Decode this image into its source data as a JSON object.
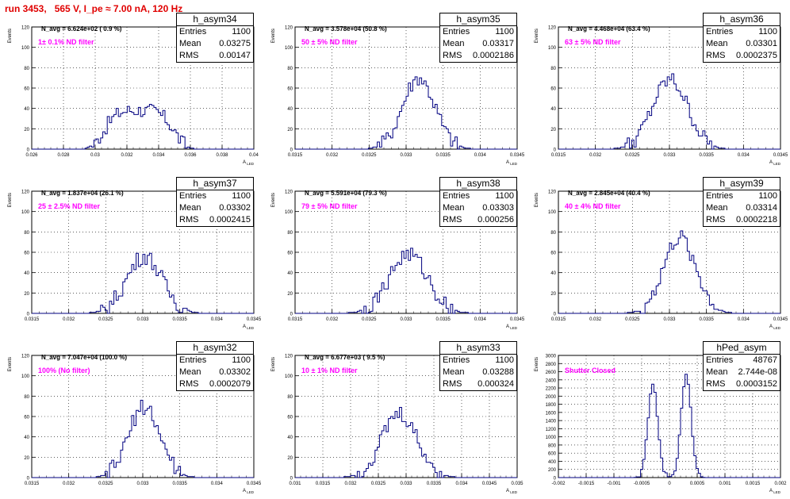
{
  "header": {
    "run_title": "run 3453,   565 V, I_pe ≈ 7.00 nA, 120 Hz"
  },
  "chart_data": [
    {
      "type": "bar",
      "name": "h_asym34",
      "n_avg": "N_avg = 6.624e+02 ( 0.9 %)",
      "filter": "1± 0.1% ND filter",
      "stats": {
        "entries": "1100",
        "mean": "0.03275",
        "rms": "0.00147"
      },
      "ylabel": "Events",
      "xlabel": "A_LED",
      "xlim": [
        0.026,
        0.04
      ],
      "ylim": [
        0,
        120
      ],
      "yticks": [
        "0",
        "20",
        "40",
        "60",
        "80",
        "100",
        "120"
      ],
      "xticks": [
        "0.026",
        "0.028",
        "0.03",
        "0.032",
        "0.034",
        "0.036",
        "0.038",
        "0.04"
      ],
      "mean": 0.03275,
      "sigma": 0.0016,
      "peak": 38,
      "shape": "flat",
      "line_color": "#000080"
    },
    {
      "type": "bar",
      "name": "h_asym35",
      "n_avg": "N_avg = 3.578e+04 (50.8 %)",
      "filter": "50 ± 5% ND filter",
      "stats": {
        "entries": "1100",
        "mean": "0.03317",
        "rms": "0.0002186"
      },
      "ylabel": "Events",
      "xlabel": "A_LED",
      "xlim": [
        0.0315,
        0.0345
      ],
      "ylim": [
        0,
        120
      ],
      "yticks": [
        "0",
        "20",
        "40",
        "60",
        "80",
        "100",
        "120"
      ],
      "xticks": [
        "0.0315",
        "0.032",
        "0.0325",
        "0.033",
        "0.0335",
        "0.034",
        "0.0345"
      ],
      "mean": 0.03317,
      "sigma": 0.00022,
      "peak": 70,
      "shape": "gauss",
      "line_color": "#000080"
    },
    {
      "type": "bar",
      "name": "h_asym36",
      "n_avg": "N_avg = 4.468e+04 (63.4 %)",
      "filter": "63 ± 5% ND filter",
      "stats": {
        "entries": "1100",
        "mean": "0.03301",
        "rms": "0.0002375"
      },
      "ylabel": "Events",
      "xlabel": "A_LED",
      "xlim": [
        0.0315,
        0.0345
      ],
      "ylim": [
        0,
        120
      ],
      "yticks": [
        "0",
        "20",
        "40",
        "60",
        "80",
        "100",
        "120"
      ],
      "xticks": [
        "0.0315",
        "0.032",
        "0.0325",
        "0.033",
        "0.0335",
        "0.034",
        "0.0345"
      ],
      "mean": 0.03301,
      "sigma": 0.00024,
      "peak": 68,
      "shape": "gauss",
      "line_color": "#000080"
    },
    {
      "type": "bar",
      "name": "h_asym37",
      "n_avg": "N_avg = 1.837e+04 (26.1 %)",
      "filter": "25 ± 2.5% ND filter",
      "stats": {
        "entries": "1100",
        "mean": "0.03302",
        "rms": "0.0002415"
      },
      "ylabel": "Events",
      "xlabel": "A_LED",
      "xlim": [
        0.0315,
        0.0345
      ],
      "ylim": [
        0,
        120
      ],
      "yticks": [
        "0",
        "20",
        "40",
        "60",
        "80",
        "100",
        "120"
      ],
      "xticks": [
        "0.0315",
        "0.032",
        "0.0325",
        "0.033",
        "0.0335",
        "0.034",
        "0.0345"
      ],
      "mean": 0.03302,
      "sigma": 0.00024,
      "peak": 56,
      "shape": "gauss",
      "line_color": "#000080"
    },
    {
      "type": "bar",
      "name": "h_asym38",
      "n_avg": "N_avg = 5.591e+04 (79.3 %)",
      "filter": "79 ± 5% ND filter",
      "stats": {
        "entries": "1100",
        "mean": "0.03303",
        "rms": "0.000256"
      },
      "ylabel": "Events",
      "xlabel": "A_LED",
      "xlim": [
        0.0315,
        0.0345
      ],
      "ylim": [
        0,
        120
      ],
      "yticks": [
        "0",
        "20",
        "40",
        "60",
        "80",
        "100",
        "120"
      ],
      "xticks": [
        "0.0315",
        "0.032",
        "0.0325",
        "0.033",
        "0.0335",
        "0.034",
        "0.0345"
      ],
      "mean": 0.03303,
      "sigma": 0.00026,
      "peak": 58,
      "shape": "gauss",
      "line_color": "#000080"
    },
    {
      "type": "bar",
      "name": "h_asym39",
      "n_avg": "N_avg = 2.845e+04 (40.4 %)",
      "filter": "40 ± 4% ND filter",
      "stats": {
        "entries": "1100",
        "mean": "0.03314",
        "rms": "0.0002218"
      },
      "ylabel": "Events",
      "xlabel": "A_LED",
      "xlim": [
        0.0315,
        0.0345
      ],
      "ylim": [
        0,
        120
      ],
      "yticks": [
        "0",
        "20",
        "40",
        "60",
        "80",
        "100",
        "120"
      ],
      "xticks": [
        "0.0315",
        "0.032",
        "0.0325",
        "0.033",
        "0.0335",
        "0.034",
        "0.0345"
      ],
      "mean": 0.03314,
      "sigma": 0.00022,
      "peak": 74,
      "shape": "gauss",
      "line_color": "#000080"
    },
    {
      "type": "bar",
      "name": "h_asym32",
      "n_avg": "N_avg = 7.047e+04 (100.0 %)",
      "filter": "100% (No filter)",
      "stats": {
        "entries": "1100",
        "mean": "0.03302",
        "rms": "0.0002079"
      },
      "ylabel": "Events",
      "xlabel": "A_LED",
      "xlim": [
        0.0315,
        0.0345
      ],
      "ylim": [
        0,
        120
      ],
      "yticks": [
        "0",
        "20",
        "40",
        "60",
        "80",
        "100",
        "120"
      ],
      "xticks": [
        "0.0315",
        "0.032",
        "0.0325",
        "0.033",
        "0.0335",
        "0.034",
        "0.0345"
      ],
      "mean": 0.03302,
      "sigma": 0.00021,
      "peak": 70,
      "shape": "gauss",
      "line_color": "#000080"
    },
    {
      "type": "bar",
      "name": "h_asym33",
      "n_avg": "N_avg = 6.677e+03 ( 9.5 %)",
      "filter": "10 ± 1% ND filter",
      "stats": {
        "entries": "1100",
        "mean": "0.03288",
        "rms": "0.000324"
      },
      "ylabel": "Events",
      "xlabel": "A_LED",
      "xlim": [
        0.031,
        0.035
      ],
      "ylim": [
        0,
        120
      ],
      "yticks": [
        "0",
        "20",
        "40",
        "60",
        "80",
        "100",
        "120"
      ],
      "xticks": [
        "0.031",
        "0.0315",
        "0.032",
        "0.0325",
        "0.033",
        "0.0335",
        "0.034",
        "0.0345",
        "0.035"
      ],
      "mean": 0.03288,
      "sigma": 0.00032,
      "peak": 62,
      "shape": "gauss",
      "line_color": "#000080"
    },
    {
      "type": "bar",
      "name": "hPed_asym",
      "n_avg": "",
      "filter": "Shutter Closed",
      "stats": {
        "entries": "48767",
        "mean": "2.744e-08",
        "rms": "0.0003152"
      },
      "ylabel": "Events",
      "xlabel": "A_LED",
      "xlim": [
        -0.002,
        0.002
      ],
      "ylim": [
        0,
        3000
      ],
      "yticks": [
        "0",
        "200",
        "400",
        "600",
        "800",
        "1000",
        "1200",
        "1400",
        "1600",
        "1800",
        "2000",
        "2200",
        "2400",
        "2600",
        "2800",
        "3000"
      ],
      "xticks": [
        "-0.002",
        "-0.0015",
        "-0.001",
        "-0.0005",
        "0",
        "0.0005",
        "0.001",
        "0.0015",
        "0.002"
      ],
      "mean": 0.0,
      "sigma": 9e-05,
      "peak": 2500,
      "shape": "double",
      "peak_offset": 0.0003,
      "peak_heights": [
        2250,
        2500
      ],
      "line_color": "#000080"
    }
  ]
}
